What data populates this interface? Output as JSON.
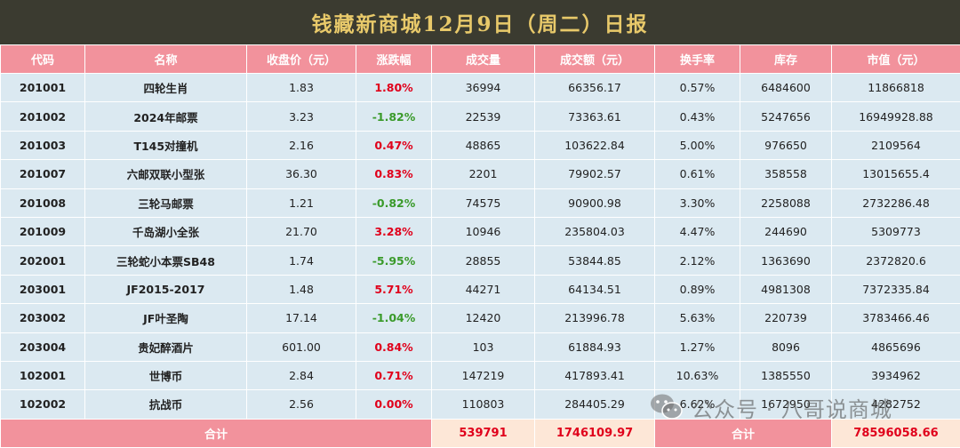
{
  "title": "钱藏新商城12月9日（周二）日报",
  "columns": [
    "代码",
    "名称",
    "收盘价（元）",
    "涨跌幅",
    "成交量",
    "成交额（元）",
    "换手率",
    "库存",
    "市值（元）"
  ],
  "rows": [
    [
      "201001",
      "四轮生肖",
      "1.83",
      "1.80%",
      "36994",
      "66356.17",
      "0.57%",
      "6484600",
      "11866818"
    ],
    [
      "201002",
      "2024年邮票",
      "3.23",
      "-1.82%",
      "22539",
      "73363.61",
      "0.43%",
      "5247656",
      "16949928.88"
    ],
    [
      "201003",
      "T145对撞机",
      "2.16",
      "0.47%",
      "48865",
      "103622.84",
      "5.00%",
      "976650",
      "2109564"
    ],
    [
      "201007",
      "六邮双联小型张",
      "36.30",
      "0.83%",
      "2201",
      "79902.57",
      "0.61%",
      "358558",
      "13015655.4"
    ],
    [
      "201008",
      "三轮马邮票",
      "1.21",
      "-0.82%",
      "74575",
      "90900.98",
      "3.30%",
      "2258088",
      "2732286.48"
    ],
    [
      "201009",
      "千岛湖小全张",
      "21.70",
      "3.28%",
      "10946",
      "235804.03",
      "4.47%",
      "244690",
      "5309773"
    ],
    [
      "202001",
      "三轮蛇小本票SB48",
      "1.74",
      "-5.95%",
      "28855",
      "53844.85",
      "2.12%",
      "1363690",
      "2372820.6"
    ],
    [
      "203001",
      "JF2015-2017",
      "1.48",
      "5.71%",
      "44271",
      "64134.51",
      "0.89%",
      "4981308",
      "7372335.84"
    ],
    [
      "203002",
      "JF叶圣陶",
      "17.14",
      "-1.04%",
      "12420",
      "213996.78",
      "5.63%",
      "220739",
      "3783466.46"
    ],
    [
      "203004",
      "贵妃醉酒片",
      "601.00",
      "0.84%",
      "103",
      "61884.93",
      "1.27%",
      "8096",
      "4865696"
    ],
    [
      "102001",
      "世博币",
      "2.84",
      "0.71%",
      "147219",
      "417893.41",
      "10.63%",
      "1385550",
      "3934962"
    ],
    [
      "102002",
      "抗战币",
      "2.56",
      "0.00%",
      "110803",
      "284405.29",
      "6.62%",
      "1672950",
      "4282752"
    ]
  ],
  "footer": {
    "label1": "合计",
    "volume_total": "539791",
    "amount_total": "1746109.97",
    "label2": "合计",
    "market_value_total": "78596058.66"
  },
  "watermark": {
    "text": "公众号 · 八哥说商城",
    "icon": "wechat-icon"
  }
}
